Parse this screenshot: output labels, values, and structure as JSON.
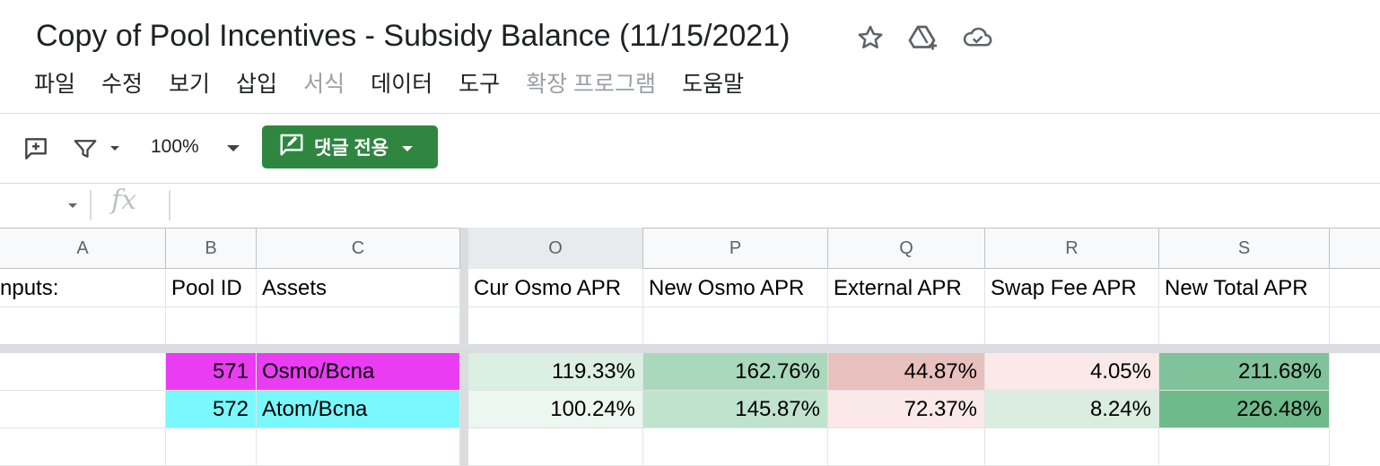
{
  "document": {
    "title": "Copy of Pool Incentives - Subsidy Balance (11/15/2021)",
    "title_icons": [
      "star-icon",
      "move-to-drive-icon",
      "cloud-status-icon"
    ]
  },
  "menu": {
    "items": [
      {
        "label": "파일",
        "disabled": false
      },
      {
        "label": "수정",
        "disabled": false
      },
      {
        "label": "보기",
        "disabled": false
      },
      {
        "label": "삽입",
        "disabled": false
      },
      {
        "label": "서식",
        "disabled": true
      },
      {
        "label": "데이터",
        "disabled": false
      },
      {
        "label": "도구",
        "disabled": false
      },
      {
        "label": "확장 프로그램",
        "disabled": true
      },
      {
        "label": "도움말",
        "disabled": false
      }
    ]
  },
  "toolbar": {
    "zoom": "100%",
    "mode_button_label": "댓글 전용",
    "mode_button_color": "#2f8640"
  },
  "formula_bar": {
    "fx_label": "fx",
    "value": ""
  },
  "columns": [
    "A",
    "B",
    "C",
    "O",
    "P",
    "Q",
    "R",
    "S"
  ],
  "header_row": {
    "A": "nputs:",
    "B": "Pool ID",
    "C": "Assets",
    "O": "Cur Osmo APR",
    "P": "New Osmo APR",
    "Q": "External APR",
    "R": "Swap Fee APR",
    "S": "New Total APR"
  },
  "rows": [
    {
      "B": "571",
      "C": "Osmo/Bcna",
      "O": "119.33%",
      "P": "162.76%",
      "Q": "44.87%",
      "R": "4.05%",
      "S": "211.68%",
      "colors": {
        "B": "#e93cf3",
        "C": "#e93cf3",
        "O": "#dcefe3",
        "P": "#a9d8bd",
        "Q": "#e8c0bd",
        "R": "#fae9e8",
        "S": "#80c29a"
      }
    },
    {
      "B": "572",
      "C": "Atom/Bcna",
      "O": "100.24%",
      "P": "145.87%",
      "Q": "72.37%",
      "R": "8.24%",
      "S": "226.48%",
      "colors": {
        "B": "#79f9fd",
        "C": "#79f9fd",
        "O": "#edf7f1",
        "P": "#bfe3cd",
        "Q": "#fae9e8",
        "R": "#d9eee1",
        "S": "#6fba8a"
      }
    }
  ]
}
